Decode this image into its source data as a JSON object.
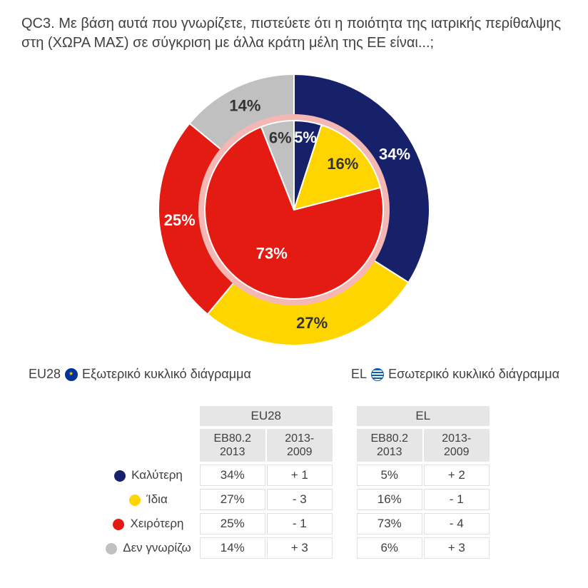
{
  "title": "QC3. Με βάση αυτά που γνωρίζετε, πιστεύετε ότι η ποιότητα της ιατρικής περίθαλψης στη (ΧΩΡΑ ΜΑΣ) σε σύγκριση με άλλα κράτη μέλη της ΕΕ είναι...;",
  "legend_outer_prefix": "EU28",
  "legend_outer_text": "Εξωτερικό κυκλικό διάγραμμα",
  "legend_inner_prefix": "EL",
  "legend_inner_text": "Εσωτερικό κυκλικό διάγραμμα",
  "chart": {
    "type": "nested-pie",
    "background_color": "#ffffff",
    "label_fontsize": 22,
    "outer": {
      "radius_outer": 190,
      "radius_inner": 132,
      "slices": [
        {
          "label": "Καλύτερη",
          "value": 34,
          "color": "#16216a",
          "display": "34%",
          "text_color": "#ffffff"
        },
        {
          "label": "Ίδια",
          "value": 27,
          "color": "#ffd500",
          "display": "27%",
          "text_color": "#333333"
        },
        {
          "label": "Χειρότερη",
          "value": 25,
          "color": "#e31b13",
          "display": "25%",
          "text_color": "#ffffff"
        },
        {
          "label": "Δεν γνωρίζω",
          "value": 14,
          "color": "#c0c0c0",
          "display": "14%",
          "text_color": "#333333"
        }
      ]
    },
    "inner": {
      "radius_outer": 125,
      "radius_inner": 0,
      "ring_color": "#f4b7b3",
      "slices": [
        {
          "label": "Καλύτερη",
          "value": 5,
          "color": "#16216a",
          "display": "5%",
          "text_color": "#ffffff"
        },
        {
          "label": "Ίδια",
          "value": 16,
          "color": "#ffd500",
          "display": "16%",
          "text_color": "#333333"
        },
        {
          "label": "Χειρότερη",
          "value": 73,
          "color": "#e31b13",
          "display": "73%",
          "text_color": "#ffffff"
        },
        {
          "label": "Δεν γνωρίζω",
          "value": 6,
          "color": "#c0c0c0",
          "display": "6%",
          "text_color": "#333333"
        }
      ]
    }
  },
  "table": {
    "group_headers": [
      "EU28",
      "EL"
    ],
    "sub_headers": [
      "EB80.2 2013",
      "2013- 2009"
    ],
    "rows": [
      {
        "swatch": "#16216a",
        "label": "Καλύτερη",
        "eu_val": "34%",
        "eu_diff": "+ 1",
        "el_val": "5%",
        "el_diff": "+ 2"
      },
      {
        "swatch": "#ffd500",
        "label": "Ίδια",
        "eu_val": "27%",
        "eu_diff": "- 3",
        "el_val": "16%",
        "el_diff": "- 1"
      },
      {
        "swatch": "#e31b13",
        "label": "Χειρότερη",
        "eu_val": "25%",
        "eu_diff": "- 1",
        "el_val": "73%",
        "el_diff": "- 4"
      },
      {
        "swatch": "#c0c0c0",
        "label": "Δεν γνωρίζω",
        "eu_val": "14%",
        "eu_diff": "+ 3",
        "el_val": "6%",
        "el_diff": "+ 3"
      }
    ]
  }
}
